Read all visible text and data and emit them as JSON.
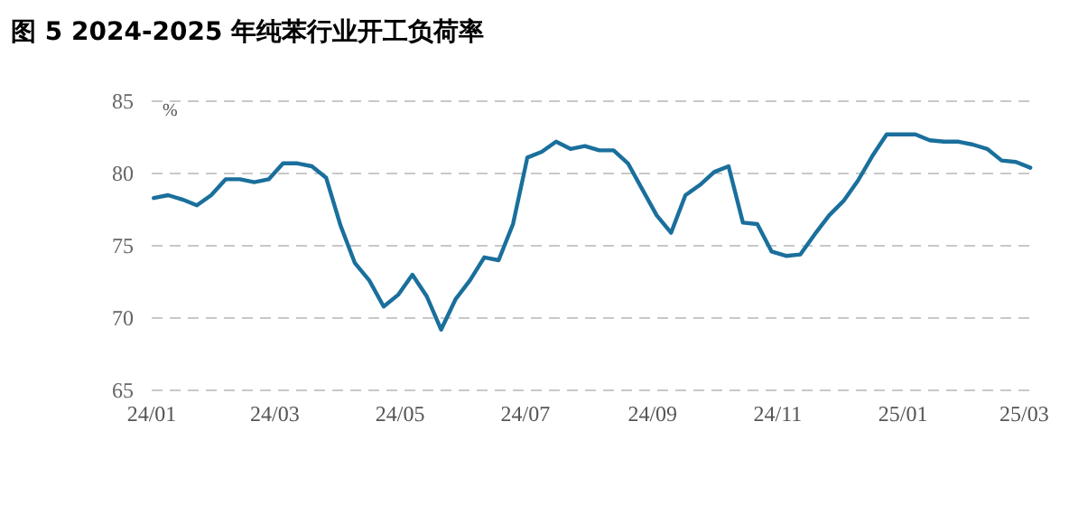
{
  "chart_data": {
    "type": "line",
    "title": "图 5 2024-2025 年纯苯行业开工负荷率",
    "ylabel": "%",
    "x": [
      "2024-01-02",
      "2024-01-09",
      "2024-01-16",
      "2024-01-23",
      "2024-01-30",
      "2024-02-06",
      "2024-02-13",
      "2024-02-20",
      "2024-02-27",
      "2024-03-05",
      "2024-03-12",
      "2024-03-19",
      "2024-03-26",
      "2024-04-02",
      "2024-04-09",
      "2024-04-16",
      "2024-04-23",
      "2024-04-30",
      "2024-05-07",
      "2024-05-14",
      "2024-05-21",
      "2024-05-28",
      "2024-06-04",
      "2024-06-11",
      "2024-06-18",
      "2024-06-25",
      "2024-07-02",
      "2024-07-09",
      "2024-07-16",
      "2024-07-23",
      "2024-07-30",
      "2024-08-06",
      "2024-08-13",
      "2024-08-20",
      "2024-08-27",
      "2024-09-03",
      "2024-09-10",
      "2024-09-17",
      "2024-09-24",
      "2024-10-01",
      "2024-10-08",
      "2024-10-15",
      "2024-10-22",
      "2024-10-29",
      "2024-11-05",
      "2024-11-12",
      "2024-11-19",
      "2024-11-26",
      "2024-12-03",
      "2024-12-10",
      "2024-12-17",
      "2024-12-24",
      "2024-12-31",
      "2025-01-07",
      "2025-01-14",
      "2025-01-21",
      "2025-01-28",
      "2025-02-04",
      "2025-02-11",
      "2025-02-18",
      "2025-02-25",
      "2025-03-04"
    ],
    "series": [
      {
        "color": "#1a6f9c",
        "values": [
          78.3,
          78.5,
          78.2,
          77.8,
          78.5,
          79.6,
          79.6,
          79.4,
          79.6,
          80.7,
          80.7,
          80.5,
          79.7,
          76.4,
          73.8,
          72.6,
          70.8,
          71.6,
          73.0,
          71.5,
          69.2,
          71.3,
          72.6,
          74.2,
          74.0,
          76.5,
          81.1,
          81.5,
          82.2,
          81.7,
          81.9,
          81.6,
          81.6,
          80.7,
          78.9,
          77.1,
          75.9,
          78.5,
          79.2,
          80.1,
          80.5,
          76.6,
          76.5,
          74.6,
          74.3,
          74.4,
          75.8,
          77.1,
          78.1,
          79.5,
          81.2,
          82.7,
          82.7,
          82.7,
          82.3,
          82.2,
          82.2,
          82.0,
          81.7,
          80.9,
          80.8,
          80.4
        ]
      }
    ],
    "xlim": [
      "2024-01-01",
      "2025-03-07"
    ],
    "xticks": [
      {
        "value": "2024-01-01",
        "label": "24/01"
      },
      {
        "value": "2024-03-01",
        "label": "24/03"
      },
      {
        "value": "2024-05-01",
        "label": "24/05"
      },
      {
        "value": "2024-07-01",
        "label": "24/07"
      },
      {
        "value": "2024-09-01",
        "label": "24/09"
      },
      {
        "value": "2024-11-01",
        "label": "24/11"
      },
      {
        "value": "2025-01-01",
        "label": "25/01"
      },
      {
        "value": "2025-03-01",
        "label": "25/03"
      }
    ],
    "ylim": [
      65,
      85
    ],
    "yticks": [
      65,
      70,
      75,
      80,
      85
    ],
    "grid": "y",
    "marker": "none",
    "line_style": "solid"
  }
}
